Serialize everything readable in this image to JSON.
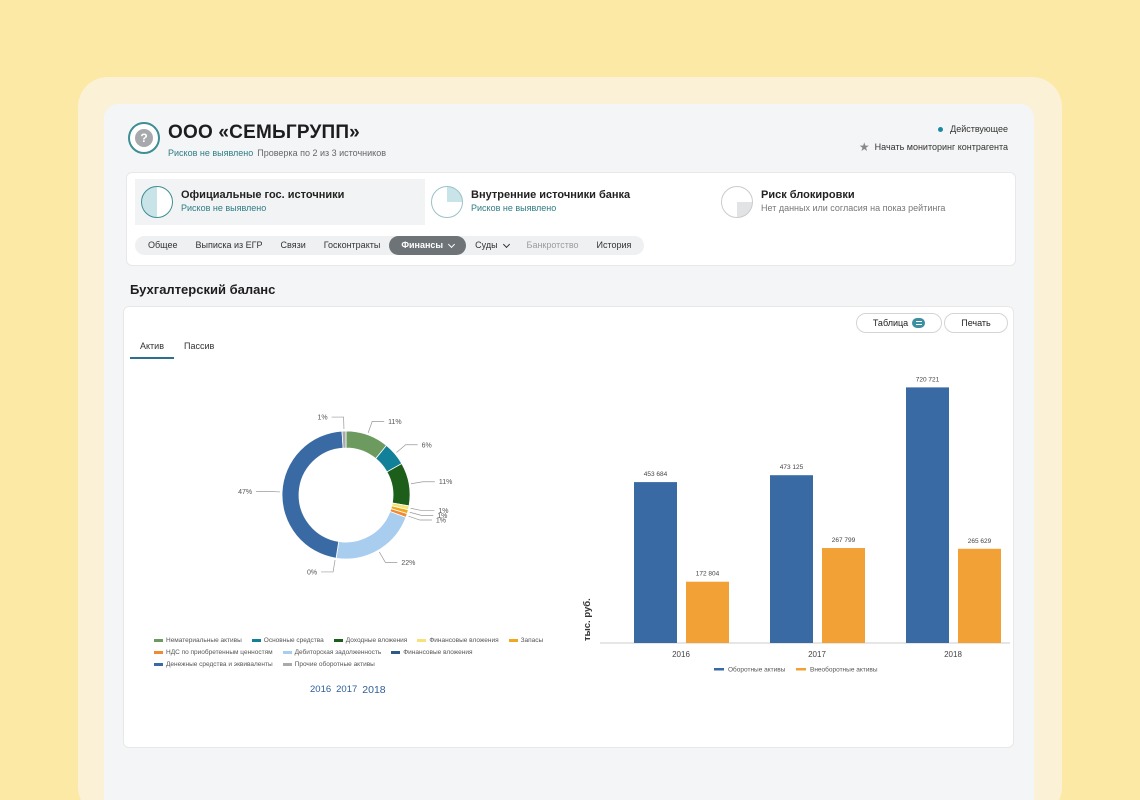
{
  "company": {
    "name": "ООО «СЕМЬГРУПП»",
    "risk": "Рисков не выявлено",
    "check": "Проверка по 2 из 3 источников",
    "status": "Действующее",
    "monitor": "Начать мониторинг контрагента"
  },
  "sources": [
    {
      "title": "Официальные гос. источники",
      "subtitle": "Рисков не выявлено"
    },
    {
      "title": "Внутренние источники банка",
      "subtitle": "Рисков не выявлено"
    },
    {
      "title": "Риск блокировки",
      "subtitle": "Нет данных или согласия на показ рейтинга"
    }
  ],
  "tabs": [
    "Общее",
    "Выписка из ЕГР",
    "Связи",
    "Госконтракты",
    "Финансы",
    "Суды",
    "Банкротство",
    "История"
  ],
  "section_title": "Бухгалтерский баланс",
  "buttons": {
    "table": "Таблица",
    "print": "Печать"
  },
  "subtabs": [
    "Актив",
    "Пассив"
  ],
  "years": [
    "2016",
    "2017",
    "2018"
  ],
  "colors": {
    "accent": "#2e7d84",
    "active_tab": "#6e7378",
    "bar_blue": "#3a6aa3",
    "bar_orange": "#f2a136"
  },
  "chart_data": [
    {
      "type": "pie",
      "subtype": "donut",
      "labels": [
        "Нематериальные активы",
        "Основные средства",
        "Доходные вложения",
        "Финансовые вложения",
        "Запасы",
        "НДС по приобретенным ценностям",
        "Дебиторская задолженность",
        "Финансовые вложения",
        "Денежные средства и эквиваленты",
        "Прочие оборотные активы"
      ],
      "values": [
        11,
        6,
        11,
        1,
        1,
        1,
        22,
        0,
        47,
        1
      ],
      "value_labels": [
        "11%",
        "6%",
        "11%",
        "1%",
        "1%",
        "1%",
        "22%",
        "0%",
        "47%",
        "1%"
      ],
      "colors": [
        "#6c9a5f",
        "#13809a",
        "#1d5f1a",
        "#f7e27a",
        "#f0a81e",
        "#f08a34",
        "#a9cdee",
        "#2e5a87",
        "#3a6aa3",
        "#aaaaaa"
      ],
      "legend_rows": [
        [
          0,
          1,
          2,
          3,
          4
        ],
        [
          5,
          6,
          7
        ],
        [
          8,
          9
        ]
      ]
    },
    {
      "type": "bar",
      "categories": [
        "2016",
        "2017",
        "2018"
      ],
      "series": [
        {
          "name": "Оборотные активы",
          "values": [
            453684,
            473125,
            720721
          ],
          "labels": [
            "453 684",
            "473 125",
            "720 721"
          ]
        },
        {
          "name": "Внеоборотные активы",
          "values": [
            172804,
            267799,
            265629
          ],
          "labels": [
            "172 804",
            "267 799",
            "265 629"
          ]
        }
      ],
      "ylabel": "тыс. руб.",
      "ylim": [
        0,
        750000
      ],
      "grid": false,
      "legend": "bottom"
    }
  ]
}
